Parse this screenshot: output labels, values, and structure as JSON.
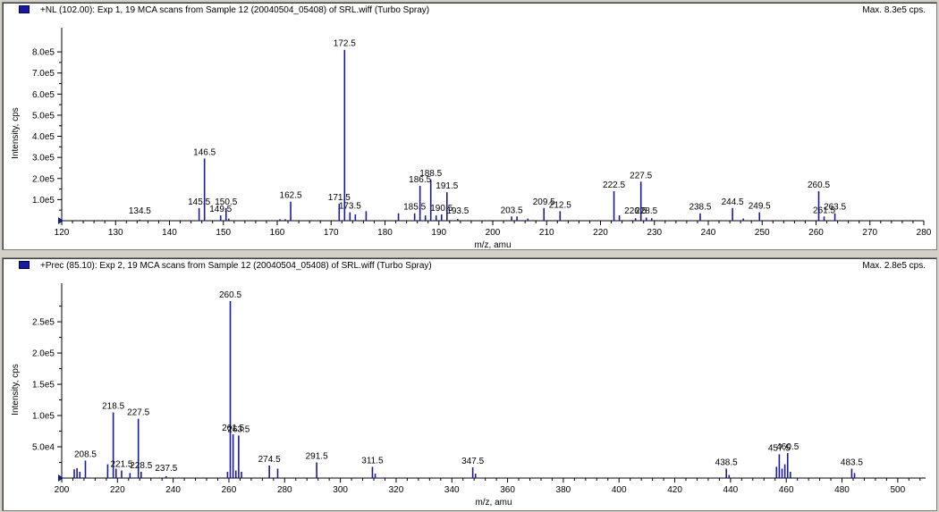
{
  "panels": [
    {
      "title": "+NL (102.00): Exp 1, 19 MCA scans from Sample 12 (20040504_05408) of SRL.wiff (Turbo Spray)",
      "max_label": "Max. 8.3e5 cps.",
      "xlabel": "m/z, amu",
      "ylabel": "Intensity, cps",
      "series_color": "#1a1aa0",
      "x_ticks": [
        "120",
        "130",
        "140",
        "150",
        "160",
        "170",
        "180",
        "190",
        "200",
        "210",
        "220",
        "230",
        "240",
        "250",
        "260",
        "270",
        "280"
      ],
      "y_ticks": [
        "1.0e5",
        "2.0e5",
        "3.0e5",
        "4.0e5",
        "5.0e5",
        "6.0e5",
        "7.0e5",
        "8.0e5"
      ],
      "peak_labels": [
        "134.5",
        "145.5",
        "146.5",
        "150.5",
        "149.5",
        "162.5",
        "171.5",
        "172.5",
        "173.5",
        "186.5",
        "185.5",
        "188.5",
        "190.5",
        "191.5",
        "193.5",
        "203.5",
        "209.5",
        "212.5",
        "222.5",
        "226.5",
        "227.5",
        "228.5",
        "238.5",
        "244.5",
        "249.5",
        "260.5",
        "261.5",
        "263.5"
      ]
    },
    {
      "title": "+Prec (85.10): Exp 2, 19 MCA scans from Sample 12 (20040504_05408) of SRL.wiff (Turbo Spray)",
      "max_label": "Max. 2.8e5 cps.",
      "xlabel": "m/z, amu",
      "ylabel": "Intensity, cps",
      "series_color": "#1a1aa0",
      "x_ticks": [
        "200",
        "220",
        "240",
        "260",
        "280",
        "300",
        "320",
        "340",
        "360",
        "380",
        "400",
        "420",
        "440",
        "460",
        "480",
        "500"
      ],
      "y_ticks": [
        "5.0e4",
        "1.0e5",
        "1.5e5",
        "2.0e5",
        "2.5e5"
      ],
      "peak_labels": [
        "208.5",
        "218.5",
        "221.5",
        "227.5",
        "228.5",
        "237.5",
        "260.5",
        "261.5",
        "263.5",
        "274.5",
        "291.5",
        "311.5",
        "347.5",
        "438.5",
        "457.5",
        "460.5",
        "483.5"
      ]
    }
  ],
  "chart_data": [
    {
      "type": "bar",
      "title": "+NL (102.00): Exp 1, 19 MCA scans from Sample 12 (20040504_05408) of SRL.wiff (Turbo Spray)",
      "xlabel": "m/z, amu",
      "ylabel": "Intensity, cps",
      "xlim": [
        120,
        280
      ],
      "ylim": [
        0,
        830000
      ],
      "grid": false,
      "x": [
        134.5,
        145.5,
        146.5,
        149.5,
        150.5,
        151.0,
        160.5,
        161.5,
        162.5,
        171.5,
        172.5,
        173.5,
        174.5,
        176.5,
        182.5,
        185.5,
        186.5,
        187.5,
        188.5,
        189.5,
        190.5,
        191.5,
        193.5,
        203.5,
        204.5,
        206.5,
        209.5,
        212.5,
        222.5,
        223.5,
        226.5,
        227.5,
        228.5,
        229.5,
        238.5,
        244.5,
        246.5,
        249.5,
        260.5,
        261.5,
        263.5
      ],
      "values": [
        5000,
        60000,
        295000,
        25000,
        60000,
        10000,
        7000,
        7000,
        90000,
        80000,
        810000,
        40000,
        30000,
        45000,
        35000,
        35000,
        165000,
        25000,
        195000,
        25000,
        30000,
        135000,
        8000,
        20000,
        20000,
        10000,
        60000,
        45000,
        140000,
        25000,
        12000,
        185000,
        15000,
        12000,
        35000,
        60000,
        10000,
        40000,
        140000,
        20000,
        35000
      ]
    },
    {
      "type": "bar",
      "title": "+Prec (85.10): Exp 2, 19 MCA scans from Sample 12 (20040504_05408) of SRL.wiff (Turbo Spray)",
      "xlabel": "m/z, amu",
      "ylabel": "Intensity, cps",
      "xlim": [
        200,
        510
      ],
      "ylim": [
        0,
        283000
      ],
      "grid": false,
      "x": [
        204.5,
        205.5,
        206.5,
        208.5,
        216.5,
        218.5,
        219.5,
        221.5,
        224.5,
        227.5,
        228.5,
        237.5,
        259.5,
        260.5,
        261.5,
        262.5,
        263.5,
        264.5,
        274.5,
        277.5,
        291.5,
        311.5,
        312.5,
        347.5,
        348.5,
        438.5,
        439.5,
        456.5,
        457.5,
        458.5,
        459.5,
        460.5,
        461.5,
        483.5,
        484.5
      ],
      "values": [
        14000,
        16000,
        10000,
        28000,
        22000,
        105000,
        15000,
        12000,
        8000,
        95000,
        10000,
        3000,
        10000,
        283000,
        70000,
        12000,
        68000,
        10000,
        20000,
        15000,
        25000,
        18000,
        7000,
        17000,
        7000,
        15000,
        5000,
        18000,
        38000,
        15000,
        22000,
        40000,
        10000,
        15000,
        8000
      ]
    }
  ]
}
